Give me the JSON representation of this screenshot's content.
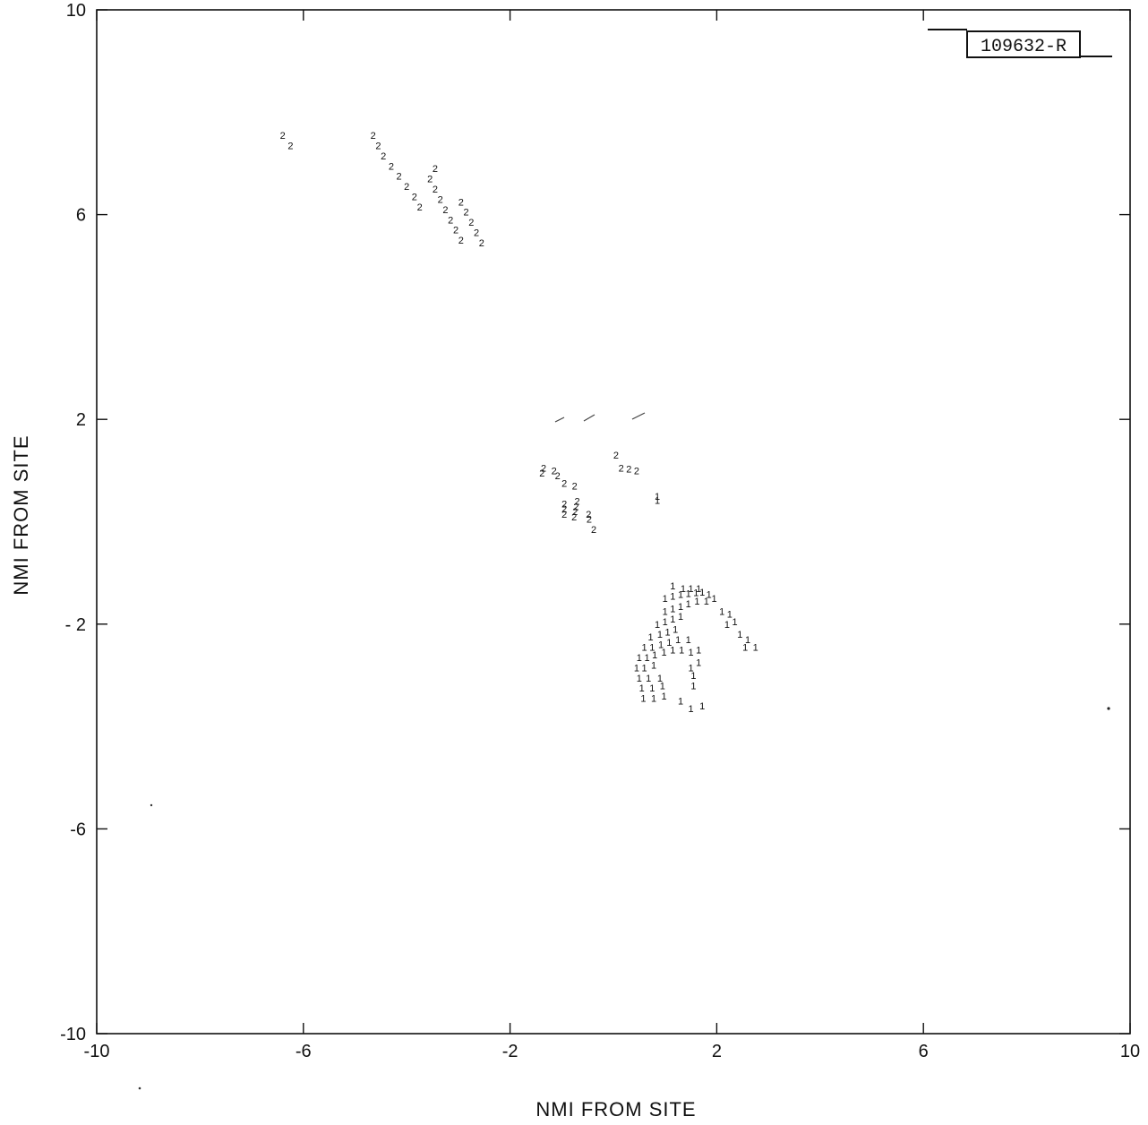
{
  "chart_data": {
    "type": "scatter",
    "title": "",
    "figure_id": "109632-R",
    "xlabel": "NMI FROM SITE",
    "ylabel": "NMI FROM SITE",
    "xlim": [
      -10,
      10
    ],
    "ylim": [
      -10,
      10
    ],
    "xticks": [
      -10,
      -6,
      -2,
      2,
      6,
      10
    ],
    "yticks": [
      -10,
      -6,
      -2,
      2,
      6,
      10
    ],
    "xtick_labels": [
      "-10",
      "-6",
      "-2",
      "2",
      "6",
      "10"
    ],
    "ytick_labels": [
      "-10",
      "-6",
      "- 2",
      "2",
      "6",
      "10"
    ],
    "grid": false,
    "legend": "none",
    "series": [
      {
        "marker": "2",
        "points": [
          [
            -6.4,
            7.55
          ],
          [
            -6.25,
            7.35
          ],
          [
            -4.65,
            7.55
          ],
          [
            -4.55,
            7.35
          ],
          [
            -4.45,
            7.15
          ],
          [
            -4.3,
            6.95
          ],
          [
            -4.15,
            6.75
          ],
          [
            -4.0,
            6.55
          ],
          [
            -3.85,
            6.35
          ],
          [
            -3.75,
            6.15
          ],
          [
            -3.45,
            6.9
          ],
          [
            -3.55,
            6.7
          ],
          [
            -3.45,
            6.5
          ],
          [
            -3.35,
            6.3
          ],
          [
            -3.25,
            6.1
          ],
          [
            -3.15,
            5.9
          ],
          [
            -3.05,
            5.7
          ],
          [
            -2.95,
            5.5
          ],
          [
            -2.95,
            6.25
          ],
          [
            -2.85,
            6.05
          ],
          [
            -2.75,
            5.85
          ],
          [
            -2.65,
            5.65
          ],
          [
            -2.55,
            5.45
          ],
          [
            -1.35,
            1.05
          ],
          [
            -1.38,
            0.95
          ],
          [
            -1.15,
            1.0
          ],
          [
            -1.08,
            0.9
          ],
          [
            -0.95,
            0.75
          ],
          [
            -0.75,
            0.7
          ],
          [
            -0.95,
            0.35
          ],
          [
            -0.95,
            0.25
          ],
          [
            -0.95,
            0.15
          ],
          [
            -0.7,
            0.4
          ],
          [
            -0.72,
            0.3
          ],
          [
            -0.74,
            0.2
          ],
          [
            -0.76,
            0.1
          ],
          [
            -0.48,
            0.15
          ],
          [
            -0.47,
            0.05
          ],
          [
            -0.38,
            -0.15
          ],
          [
            0.05,
            1.3
          ],
          [
            0.15,
            1.05
          ],
          [
            0.3,
            1.03
          ],
          [
            0.45,
            1.0
          ]
        ]
      },
      {
        "marker": "1",
        "points": [
          [
            0.85,
            0.5
          ],
          [
            0.85,
            0.42
          ],
          [
            1.15,
            -1.25
          ],
          [
            1.35,
            -1.3
          ],
          [
            1.5,
            -1.3
          ],
          [
            1.65,
            -1.3
          ],
          [
            1.0,
            -1.5
          ],
          [
            1.15,
            -1.45
          ],
          [
            1.3,
            -1.42
          ],
          [
            1.45,
            -1.4
          ],
          [
            1.6,
            -1.38
          ],
          [
            1.72,
            -1.37
          ],
          [
            1.85,
            -1.42
          ],
          [
            1.0,
            -1.75
          ],
          [
            1.15,
            -1.7
          ],
          [
            1.3,
            -1.65
          ],
          [
            1.45,
            -1.6
          ],
          [
            1.62,
            -1.55
          ],
          [
            1.8,
            -1.55
          ],
          [
            1.95,
            -1.5
          ],
          [
            0.85,
            -2.0
          ],
          [
            1.0,
            -1.95
          ],
          [
            1.15,
            -1.9
          ],
          [
            1.3,
            -1.85
          ],
          [
            2.1,
            -1.75
          ],
          [
            2.25,
            -1.8
          ],
          [
            0.72,
            -2.25
          ],
          [
            0.9,
            -2.2
          ],
          [
            1.05,
            -2.15
          ],
          [
            1.2,
            -2.1
          ],
          [
            2.2,
            -2.0
          ],
          [
            2.35,
            -1.95
          ],
          [
            0.6,
            -2.45
          ],
          [
            0.75,
            -2.45
          ],
          [
            0.92,
            -2.4
          ],
          [
            1.08,
            -2.35
          ],
          [
            1.25,
            -2.3
          ],
          [
            1.45,
            -2.3
          ],
          [
            2.45,
            -2.2
          ],
          [
            2.6,
            -2.3
          ],
          [
            0.5,
            -2.65
          ],
          [
            0.65,
            -2.65
          ],
          [
            0.8,
            -2.6
          ],
          [
            0.98,
            -2.55
          ],
          [
            1.15,
            -2.5
          ],
          [
            1.32,
            -2.5
          ],
          [
            1.5,
            -2.55
          ],
          [
            1.65,
            -2.5
          ],
          [
            2.55,
            -2.45
          ],
          [
            2.75,
            -2.45
          ],
          [
            0.45,
            -2.85
          ],
          [
            0.6,
            -2.85
          ],
          [
            0.78,
            -2.8
          ],
          [
            1.5,
            -2.85
          ],
          [
            1.65,
            -2.75
          ],
          [
            0.5,
            -3.05
          ],
          [
            0.68,
            -3.05
          ],
          [
            0.9,
            -3.05
          ],
          [
            1.55,
            -3.0
          ],
          [
            0.55,
            -3.25
          ],
          [
            0.75,
            -3.25
          ],
          [
            0.95,
            -3.2
          ],
          [
            1.55,
            -3.2
          ],
          [
            0.58,
            -3.45
          ],
          [
            0.78,
            -3.45
          ],
          [
            0.98,
            -3.4
          ],
          [
            1.3,
            -3.5
          ],
          [
            1.5,
            -3.65
          ],
          [
            1.72,
            -3.6
          ]
        ]
      }
    ]
  }
}
